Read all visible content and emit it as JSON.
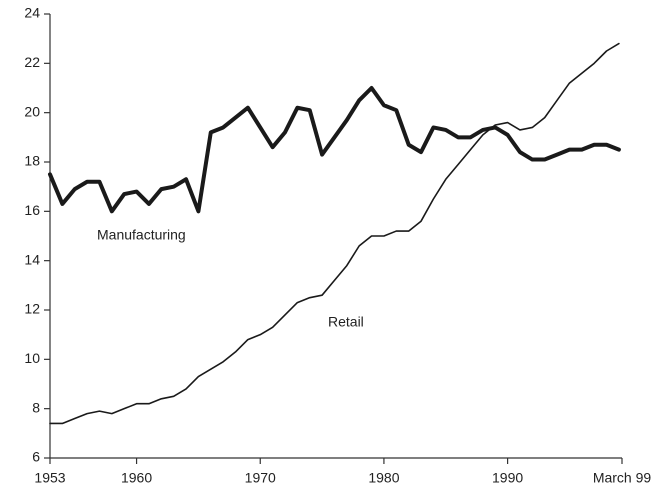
{
  "chart_data": {
    "type": "line",
    "x": [
      1953,
      1954,
      1955,
      1956,
      1957,
      1958,
      1959,
      1960,
      1961,
      1962,
      1963,
      1964,
      1965,
      1966,
      1967,
      1968,
      1969,
      1970,
      1971,
      1972,
      1973,
      1974,
      1975,
      1976,
      1977,
      1978,
      1979,
      1980,
      1981,
      1982,
      1983,
      1984,
      1985,
      1986,
      1987,
      1988,
      1989,
      1990,
      1991,
      1992,
      1993,
      1994,
      1995,
      1996,
      1997,
      1998,
      1999
    ],
    "series": [
      {
        "name": "Manufacturing",
        "color": "#1a1a1a",
        "values": [
          17.5,
          16.3,
          16.9,
          17.2,
          17.2,
          16.0,
          16.7,
          16.8,
          16.3,
          16.9,
          17.0,
          17.3,
          16.0,
          19.2,
          19.4,
          19.8,
          20.2,
          19.4,
          18.6,
          19.2,
          20.2,
          20.1,
          18.3,
          19.0,
          19.7,
          20.5,
          21.0,
          20.3,
          20.1,
          18.7,
          18.4,
          19.4,
          19.3,
          19.0,
          19.0,
          19.3,
          19.4,
          19.1,
          18.4,
          18.1,
          18.1,
          18.3,
          18.5,
          18.5,
          18.7,
          18.7,
          18.5
        ]
      },
      {
        "name": "Retail",
        "color": "#1a1a1a",
        "values": [
          7.4,
          7.4,
          7.6,
          7.8,
          7.9,
          7.8,
          8.0,
          8.2,
          8.2,
          8.4,
          8.5,
          8.8,
          9.3,
          9.6,
          9.9,
          10.3,
          10.8,
          11.0,
          11.3,
          11.8,
          12.3,
          12.5,
          12.6,
          13.2,
          13.8,
          14.6,
          15.0,
          15.0,
          15.2,
          15.2,
          15.6,
          16.5,
          17.3,
          17.9,
          18.5,
          19.1,
          19.5,
          19.6,
          19.3,
          19.4,
          19.8,
          20.5,
          21.2,
          21.6,
          22.0,
          22.5,
          22.8
        ]
      }
    ],
    "xlim": [
      1953,
      1999.25
    ],
    "xticks": [
      1953,
      1960,
      1970,
      1980,
      1990,
      {
        "value": 1999.25,
        "label": "March 99"
      }
    ],
    "ylim": [
      6,
      24
    ],
    "yticks": [
      6,
      8,
      10,
      12,
      14,
      16,
      18,
      20,
      22,
      24
    ],
    "grid": false
  }
}
